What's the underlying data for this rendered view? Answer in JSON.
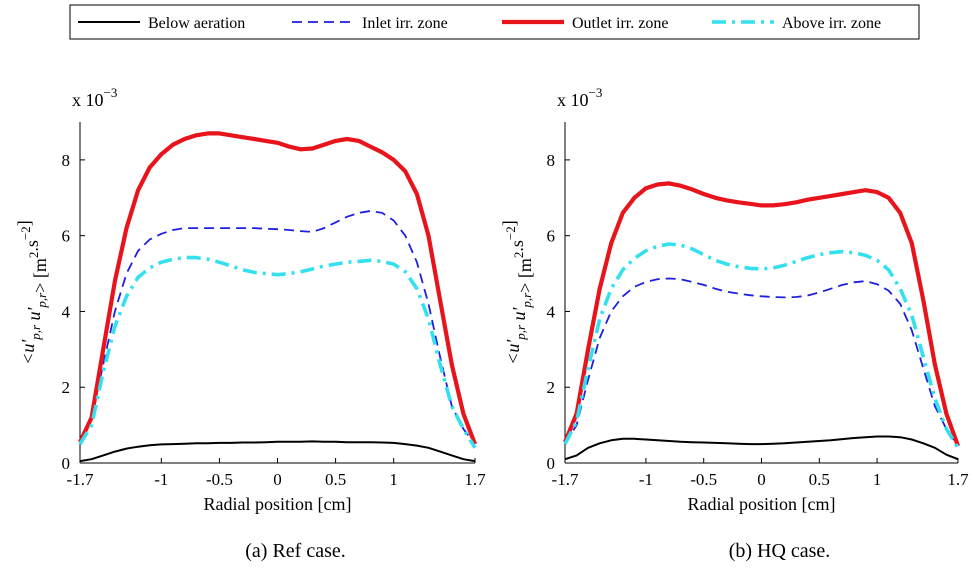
{
  "legend": {
    "entries": [
      {
        "label": "Below aeration",
        "color": "#000000",
        "style": "solid"
      },
      {
        "label": "Inlet irr. zone",
        "color": "#1f1fe0",
        "style": "dashed"
      },
      {
        "label": "Outlet irr. zone",
        "color": "#e8141c",
        "style": "solid-thick"
      },
      {
        "label": "Above irr. zone",
        "color": "#33e0ee",
        "style": "dash-dot"
      }
    ]
  },
  "chart_data": [
    {
      "type": "line",
      "caption": "(a) Ref case.",
      "xlabel": "Radial position [cm]",
      "ylabel": "<u'p,r u'p,r> [m2.s-2]",
      "y_multiplier": "x 10-3",
      "xlim": [
        -1.7,
        1.7
      ],
      "ylim": [
        0,
        9
      ],
      "xticks": [
        "-1.7",
        "-1",
        "-0.5",
        "0",
        "0.5",
        "1",
        "1.7"
      ],
      "yticks": [
        "0",
        "2",
        "4",
        "6",
        "8"
      ],
      "x": [
        -1.7,
        -1.6,
        -1.5,
        -1.4,
        -1.3,
        -1.2,
        -1.1,
        -1.0,
        -0.9,
        -0.8,
        -0.7,
        -0.6,
        -0.5,
        -0.4,
        -0.3,
        -0.2,
        -0.1,
        0.0,
        0.1,
        0.2,
        0.3,
        0.4,
        0.5,
        0.6,
        0.7,
        0.8,
        0.9,
        1.0,
        1.1,
        1.2,
        1.3,
        1.4,
        1.5,
        1.6,
        1.7
      ],
      "series": [
        {
          "name": "Below aeration",
          "values": [
            0.05,
            0.1,
            0.2,
            0.3,
            0.38,
            0.43,
            0.47,
            0.49,
            0.5,
            0.51,
            0.52,
            0.52,
            0.53,
            0.53,
            0.54,
            0.54,
            0.55,
            0.56,
            0.56,
            0.56,
            0.57,
            0.56,
            0.56,
            0.55,
            0.55,
            0.55,
            0.54,
            0.53,
            0.5,
            0.46,
            0.4,
            0.3,
            0.2,
            0.1,
            0.05
          ]
        },
        {
          "name": "Inlet irr. zone",
          "values": [
            0.6,
            1.2,
            2.6,
            4.0,
            5.0,
            5.6,
            5.9,
            6.05,
            6.15,
            6.2,
            6.2,
            6.2,
            6.2,
            6.2,
            6.2,
            6.2,
            6.18,
            6.17,
            6.15,
            6.12,
            6.1,
            6.2,
            6.35,
            6.5,
            6.6,
            6.65,
            6.6,
            6.4,
            6.0,
            5.3,
            4.2,
            2.8,
            1.5,
            0.9,
            0.5
          ]
        },
        {
          "name": "Outlet irr. zone",
          "values": [
            0.55,
            1.2,
            3.0,
            4.8,
            6.2,
            7.2,
            7.8,
            8.15,
            8.4,
            8.55,
            8.65,
            8.7,
            8.7,
            8.65,
            8.6,
            8.55,
            8.5,
            8.45,
            8.35,
            8.28,
            8.3,
            8.4,
            8.5,
            8.55,
            8.5,
            8.35,
            8.2,
            8.0,
            7.7,
            7.1,
            6.0,
            4.3,
            2.6,
            1.3,
            0.5
          ]
        },
        {
          "name": "Above irr. zone",
          "values": [
            0.5,
            1.0,
            2.4,
            3.6,
            4.4,
            4.9,
            5.15,
            5.3,
            5.38,
            5.42,
            5.42,
            5.38,
            5.3,
            5.2,
            5.1,
            5.03,
            5.0,
            4.97,
            5.0,
            5.05,
            5.12,
            5.2,
            5.25,
            5.3,
            5.32,
            5.35,
            5.32,
            5.25,
            5.05,
            4.6,
            3.8,
            2.6,
            1.5,
            0.9,
            0.4
          ]
        }
      ]
    },
    {
      "type": "line",
      "caption": "(b) HQ case.",
      "xlabel": "Radial position [cm]",
      "ylabel": "<u'p,r u'p,r> [m2.s-2]",
      "y_multiplier": "x 10-3",
      "xlim": [
        -1.7,
        1.7
      ],
      "ylim": [
        0,
        9
      ],
      "xticks": [
        "-1.7",
        "-1",
        "-0.5",
        "0",
        "0.5",
        "1",
        "1.7"
      ],
      "yticks": [
        "0",
        "2",
        "4",
        "6",
        "8"
      ],
      "x": [
        -1.7,
        -1.6,
        -1.5,
        -1.4,
        -1.3,
        -1.2,
        -1.1,
        -1.0,
        -0.9,
        -0.8,
        -0.7,
        -0.6,
        -0.5,
        -0.4,
        -0.3,
        -0.2,
        -0.1,
        0.0,
        0.1,
        0.2,
        0.3,
        0.4,
        0.5,
        0.6,
        0.7,
        0.8,
        0.9,
        1.0,
        1.1,
        1.2,
        1.3,
        1.4,
        1.5,
        1.6,
        1.7
      ],
      "series": [
        {
          "name": "Below aeration",
          "values": [
            0.1,
            0.2,
            0.4,
            0.52,
            0.6,
            0.64,
            0.64,
            0.62,
            0.6,
            0.58,
            0.56,
            0.55,
            0.54,
            0.53,
            0.52,
            0.51,
            0.5,
            0.5,
            0.51,
            0.52,
            0.54,
            0.56,
            0.58,
            0.6,
            0.63,
            0.66,
            0.68,
            0.7,
            0.7,
            0.68,
            0.62,
            0.52,
            0.4,
            0.22,
            0.1
          ]
        },
        {
          "name": "Inlet irr. zone",
          "values": [
            0.5,
            1.0,
            2.2,
            3.3,
            4.0,
            4.4,
            4.65,
            4.78,
            4.85,
            4.87,
            4.85,
            4.78,
            4.7,
            4.6,
            4.52,
            4.47,
            4.43,
            4.4,
            4.38,
            4.37,
            4.38,
            4.42,
            4.5,
            4.6,
            4.7,
            4.77,
            4.8,
            4.72,
            4.55,
            4.2,
            3.5,
            2.5,
            1.5,
            0.9,
            0.45
          ]
        },
        {
          "name": "Outlet irr. zone",
          "values": [
            0.55,
            1.3,
            3.0,
            4.6,
            5.8,
            6.6,
            7.0,
            7.25,
            7.35,
            7.38,
            7.32,
            7.22,
            7.1,
            7.0,
            6.93,
            6.88,
            6.84,
            6.8,
            6.8,
            6.83,
            6.88,
            6.95,
            7.0,
            7.05,
            7.1,
            7.15,
            7.2,
            7.15,
            7.0,
            6.6,
            5.8,
            4.3,
            2.6,
            1.3,
            0.45
          ]
        },
        {
          "name": "Above irr. zone",
          "values": [
            0.5,
            1.1,
            2.5,
            3.8,
            4.6,
            5.1,
            5.4,
            5.6,
            5.72,
            5.78,
            5.75,
            5.65,
            5.5,
            5.35,
            5.25,
            5.18,
            5.14,
            5.12,
            5.15,
            5.22,
            5.32,
            5.42,
            5.5,
            5.55,
            5.58,
            5.55,
            5.48,
            5.35,
            5.1,
            4.6,
            3.9,
            2.8,
            1.7,
            0.9,
            0.4
          ]
        }
      ]
    }
  ]
}
